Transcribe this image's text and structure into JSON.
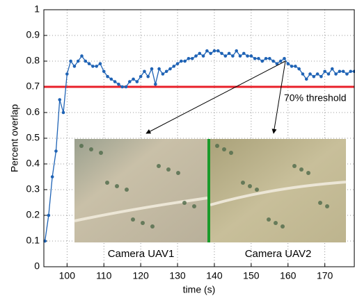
{
  "chart_data": {
    "type": "line",
    "xlabel": "time (s)",
    "ylabel": "Percent overlap",
    "x": [
      94,
      95,
      96,
      97,
      98,
      99,
      100,
      101,
      102,
      103,
      104,
      105,
      106,
      107,
      108,
      109,
      110,
      111,
      112,
      113,
      114,
      115,
      116,
      117,
      118,
      119,
      120,
      121,
      122,
      123,
      124,
      125,
      126,
      127,
      128,
      129,
      130,
      131,
      132,
      133,
      134,
      135,
      136,
      137,
      138,
      139,
      140,
      141,
      142,
      143,
      144,
      145,
      146,
      147,
      148,
      149,
      150,
      151,
      152,
      153,
      154,
      155,
      156,
      157,
      158,
      159,
      160,
      161,
      162,
      163,
      164,
      165,
      166,
      167,
      168,
      169,
      170,
      171,
      172,
      173,
      174,
      175,
      176,
      177,
      178
    ],
    "values": [
      0.1,
      0.2,
      0.35,
      0.45,
      0.65,
      0.6,
      0.75,
      0.8,
      0.78,
      0.8,
      0.82,
      0.8,
      0.79,
      0.78,
      0.78,
      0.79,
      0.76,
      0.74,
      0.73,
      0.72,
      0.71,
      0.7,
      0.7,
      0.72,
      0.73,
      0.72,
      0.74,
      0.76,
      0.74,
      0.77,
      0.71,
      0.77,
      0.75,
      0.76,
      0.77,
      0.78,
      0.79,
      0.8,
      0.8,
      0.81,
      0.81,
      0.82,
      0.83,
      0.82,
      0.84,
      0.83,
      0.84,
      0.84,
      0.83,
      0.82,
      0.83,
      0.82,
      0.84,
      0.82,
      0.83,
      0.82,
      0.82,
      0.81,
      0.81,
      0.8,
      0.81,
      0.81,
      0.8,
      0.79,
      0.8,
      0.81,
      0.79,
      0.78,
      0.78,
      0.77,
      0.75,
      0.73,
      0.75,
      0.74,
      0.75,
      0.74,
      0.76,
      0.75,
      0.77,
      0.75,
      0.76,
      0.76,
      0.75,
      0.76,
      0.76
    ],
    "color": "#1f63b5",
    "xlim": [
      93.7,
      178
    ],
    "ylim": [
      0,
      1
    ],
    "xticks": [
      100,
      110,
      120,
      130,
      140,
      150,
      160,
      170
    ],
    "yticks": [
      0,
      0.1,
      0.2,
      0.3,
      0.4,
      0.5,
      0.6,
      0.7,
      0.8,
      0.9,
      1
    ],
    "grid": true,
    "threshold": {
      "value": 0.7,
      "label": "70% threshold",
      "color": "#e8202a"
    },
    "insets": [
      {
        "label": "Camera UAV1",
        "color": "#1f63b5"
      },
      {
        "label": "Camera UAV2",
        "color": "#e8202a"
      }
    ]
  }
}
